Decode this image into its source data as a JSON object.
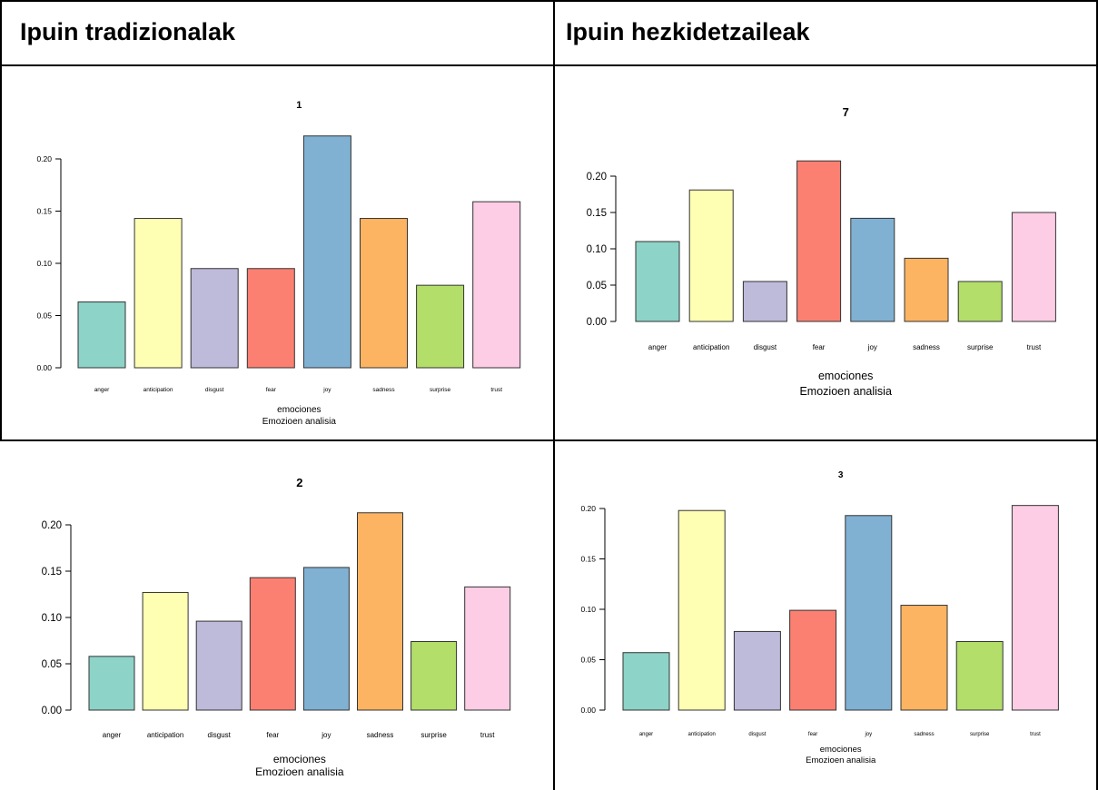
{
  "headers": {
    "left": "Ipuin tradizionalak",
    "right": "Ipuin hezkidetzaileak"
  },
  "colors": [
    "#8dd3c7",
    "#ffffb3",
    "#bebada",
    "#fb8072",
    "#80b1d3",
    "#fdb462",
    "#b3de69",
    "#fccde5"
  ],
  "chart_data": [
    {
      "type": "bar",
      "title": "1",
      "categories": [
        "anger",
        "anticipation",
        "disgust",
        "fear",
        "joy",
        "sadness",
        "surprise",
        "trust"
      ],
      "values": [
        0.063,
        0.143,
        0.095,
        0.095,
        0.222,
        0.143,
        0.079,
        0.159
      ],
      "yticks": [
        "0.00",
        "0.05",
        "0.10",
        "0.15",
        "0.20"
      ],
      "ylim": [
        0,
        0.222
      ],
      "xlabel": "emociones",
      "sublabel": "Emozioen analisia"
    },
    {
      "type": "bar",
      "title": "7",
      "categories": [
        "anger",
        "anticipation",
        "disgust",
        "fear",
        "joy",
        "sadness",
        "surprise",
        "trust"
      ],
      "values": [
        0.11,
        0.181,
        0.055,
        0.221,
        0.142,
        0.087,
        0.055,
        0.15
      ],
      "yticks": [
        "0.00",
        "0.05",
        "0.10",
        "0.15",
        "0.20"
      ],
      "ylim": [
        0,
        0.221
      ],
      "xlabel": "emociones",
      "sublabel": "Emozioen analisia"
    },
    {
      "type": "bar",
      "title": "2",
      "categories": [
        "anger",
        "anticipation",
        "disgust",
        "fear",
        "joy",
        "sadness",
        "surprise",
        "trust"
      ],
      "values": [
        0.058,
        0.127,
        0.096,
        0.143,
        0.154,
        0.213,
        0.074,
        0.133
      ],
      "yticks": [
        "0.00",
        "0.05",
        "0.10",
        "0.15",
        "0.20"
      ],
      "ylim": [
        0,
        0.213
      ],
      "xlabel": "emociones",
      "sublabel": "Emozioen analisia"
    },
    {
      "type": "bar",
      "title": "3",
      "categories": [
        "anger",
        "anticipation",
        "disgust",
        "fear",
        "joy",
        "sadness",
        "surprise",
        "trust"
      ],
      "values": [
        0.057,
        0.198,
        0.078,
        0.099,
        0.193,
        0.104,
        0.068,
        0.203
      ],
      "yticks": [
        "0.00",
        "0.05",
        "0.10",
        "0.15",
        "0.20"
      ],
      "ylim": [
        0,
        0.203
      ],
      "xlabel": "emociones",
      "sublabel": "Emozioen analisia"
    }
  ]
}
